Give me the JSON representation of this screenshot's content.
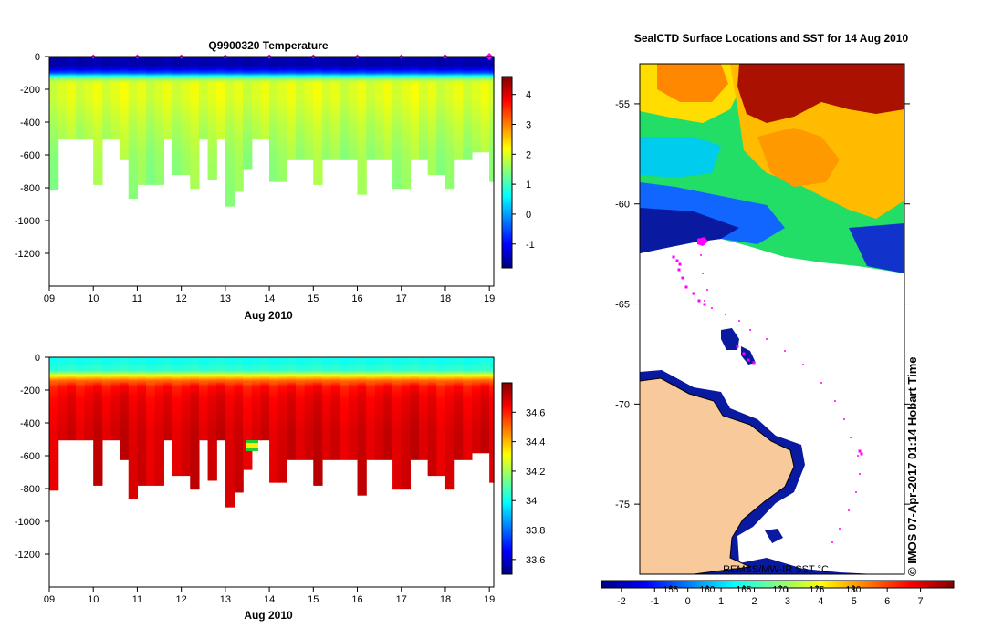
{
  "colors": {
    "jet": [
      "#00007f",
      "#0000ff",
      "#007fff",
      "#00ffff",
      "#7fff7f",
      "#ffff00",
      "#ff7f00",
      "#ff0000",
      "#7f0000"
    ],
    "land": "#f8c99b",
    "track": "#ff00ff",
    "stack_bottom": "#7f0000"
  },
  "chart_data": [
    {
      "type": "heatmap",
      "title": "Q9900320  Temperature",
      "xlabel": "Aug 2010",
      "ylabel": "",
      "xlim": [
        9,
        19.1
      ],
      "ylim": [
        -1400,
        0
      ],
      "xticks": [
        "09",
        "10",
        "11",
        "12",
        "13",
        "14",
        "15",
        "16",
        "17",
        "18",
        "19"
      ],
      "yticks": [
        "0",
        "-200",
        "-400",
        "-600",
        "-800",
        "-1000",
        "-1200"
      ],
      "colorbar": {
        "min": -1.8,
        "max": 4.6,
        "ticks": [
          "4",
          "3",
          "2",
          "1",
          "0",
          "-1"
        ]
      },
      "surface_markers_day": [
        10,
        11,
        12,
        13,
        14,
        15,
        16,
        17,
        18,
        19
      ],
      "profiles": {
        "time": [
          9.0,
          9.2,
          9.4,
          9.6,
          9.8,
          10.0,
          10.2,
          10.4,
          10.6,
          10.8,
          11.0,
          11.2,
          11.4,
          11.6,
          11.8,
          12.0,
          12.2,
          12.4,
          12.6,
          12.8,
          13.0,
          13.2,
          13.4,
          13.6,
          13.8,
          14.0,
          14.2,
          14.4,
          14.6,
          14.8,
          15.0,
          15.2,
          15.4,
          15.6,
          15.8,
          16.0,
          16.2,
          16.4,
          16.6,
          16.8,
          17.0,
          17.2,
          17.4,
          17.6,
          17.8,
          18.0,
          18.2,
          18.4,
          18.6,
          18.8,
          19.0
        ],
        "max_depth": [
          810,
          500,
          500,
          500,
          500,
          780,
          500,
          500,
          620,
          860,
          780,
          780,
          780,
          500,
          720,
          720,
          800,
          500,
          750,
          500,
          910,
          820,
          680,
          500,
          500,
          760,
          760,
          620,
          620,
          620,
          780,
          620,
          620,
          620,
          620,
          840,
          620,
          620,
          620,
          800,
          800,
          620,
          620,
          720,
          720,
          800,
          620,
          620,
          580,
          580,
          760
        ]
      },
      "temperature_profile": {
        "depth": [
          0,
          60,
          100,
          130,
          160,
          250,
          400,
          600,
          900
        ],
        "value": [
          -1.5,
          -1.5,
          -0.5,
          1.4,
          2.0,
          2.0,
          1.8,
          1.6,
          1.5
        ]
      }
    },
    {
      "type": "heatmap",
      "title": "",
      "xlabel": "Aug 2010",
      "ylabel": "",
      "xlim": [
        9,
        19.1
      ],
      "ylim": [
        -1400,
        0
      ],
      "xticks": [
        "09",
        "10",
        "11",
        "12",
        "13",
        "14",
        "15",
        "16",
        "17",
        "18",
        "19"
      ],
      "yticks": [
        "0",
        "-200",
        "-400",
        "-600",
        "-800",
        "-1000",
        "-1200"
      ],
      "colorbar": {
        "min": 33.5,
        "max": 34.8,
        "ticks": [
          "34.6",
          "34.4",
          "34.2",
          "34",
          "33.8",
          "33.6"
        ]
      },
      "salinity_profile": {
        "depth": [
          0,
          80,
          110,
          140,
          180,
          250,
          450,
          900
        ],
        "value": [
          34.0,
          34.05,
          34.3,
          34.5,
          34.62,
          34.66,
          34.69,
          34.7
        ]
      }
    },
    {
      "type": "heatmap",
      "title": "SealCTD Surface Locations and SST for 14 Aug 2010",
      "xlabel": "",
      "ylabel": "",
      "yticks": [
        "-55",
        "-60",
        "-65",
        "-70",
        "-75"
      ],
      "ylim": [
        -78.5,
        -53
      ],
      "watermark": "© IMOS 07-Apr-2017 01:14 Hobart Time",
      "colorbar_caption": "REMSS/MW-IR SST °C",
      "colorbar": {
        "min": -2.6,
        "max": 8.0,
        "ticks": [
          "-2",
          "-1",
          "0",
          "1",
          "2",
          "3",
          "4",
          "5",
          "6",
          "7"
        ],
        "kelvin_ticks": [
          "155",
          "160",
          "165",
          "170",
          "175",
          "180"
        ]
      }
    }
  ]
}
